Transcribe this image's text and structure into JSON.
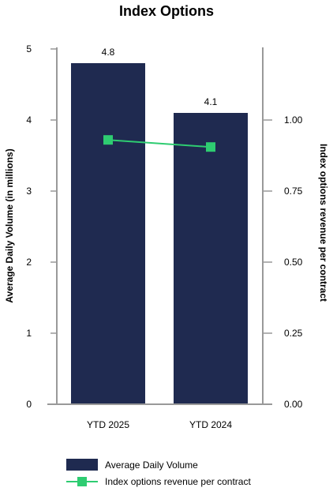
{
  "chart_data": {
    "type": "bar",
    "title": "Index Options",
    "categories": [
      "YTD 2025",
      "YTD 2024"
    ],
    "series": [
      {
        "name": "Average Daily Volume",
        "chart": "bar",
        "axis": "left",
        "values": [
          4.8,
          4.1
        ],
        "data_labels": [
          "4.8",
          "4.1"
        ],
        "color": "#1f2a50"
      },
      {
        "name": "Index options revenue per contract",
        "chart": "line",
        "axis": "right",
        "values": [
          0.93,
          0.905
        ],
        "color": "#2ecc71"
      }
    ],
    "ylabel": "Average Daily Volume (in millions)",
    "ylim": [
      0,
      5
    ],
    "yticks": [
      "0",
      "1",
      "2",
      "3",
      "4",
      "5"
    ],
    "y2label": "Index options revenue per contract",
    "y2lim": [
      0,
      1.25
    ],
    "y2ticks": [
      "0.00",
      "0.25",
      "0.50",
      "0.75",
      "1.00"
    ],
    "legend_position": "bottom-left",
    "grid": false
  }
}
